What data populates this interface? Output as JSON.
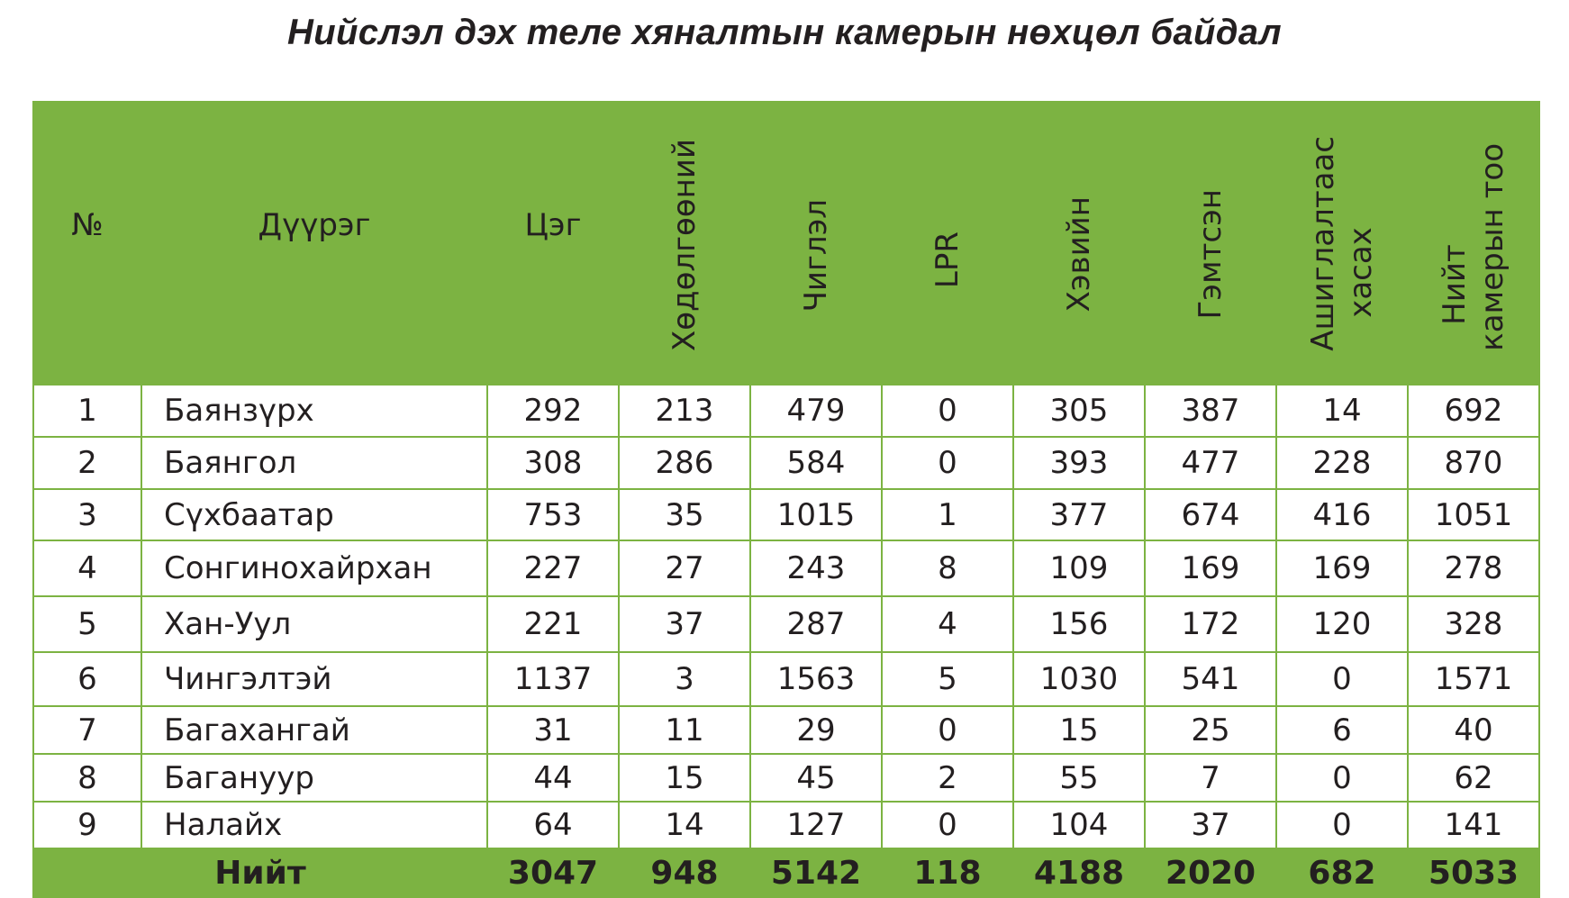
{
  "title": "Нийслэл дэх теле хяналтын камерын нөхцөл байдал",
  "table": {
    "headers": {
      "no": "№",
      "district": "Дүүрэг",
      "point": "Цэг",
      "motion": "Хөдөлгөөний",
      "fixed": "Чиглэл",
      "lpr": "LPR",
      "working": "Хэвийн",
      "broken": "Гэмтсэн",
      "removed_line1": "Ашиглалтаас",
      "removed_line2": "хасах",
      "total_line1": "Нийт",
      "total_line2": "камерын тоо"
    },
    "rows": [
      [
        "1",
        "Баянзүрх",
        "292",
        "213",
        "479",
        "0",
        "305",
        "387",
        "14",
        "692"
      ],
      [
        "2",
        "Баянгол",
        "308",
        "286",
        "584",
        "0",
        "393",
        "477",
        "228",
        "870"
      ],
      [
        "3",
        "Сүхбаатар",
        "753",
        "35",
        "1015",
        "1",
        "377",
        "674",
        "416",
        "1051"
      ],
      [
        "4",
        "Сонгинохайрхан",
        "227",
        "27",
        "243",
        "8",
        "109",
        "169",
        "169",
        "278"
      ],
      [
        "5",
        "Хан-Уул",
        "221",
        "37",
        "287",
        "4",
        "156",
        "172",
        "120",
        "328"
      ],
      [
        "6",
        "Чингэлтэй",
        "1137",
        "3",
        "1563",
        "5",
        "1030",
        "541",
        "0",
        "1571"
      ],
      [
        "7",
        "Багахангай",
        "31",
        "11",
        "29",
        "0",
        "15",
        "25",
        "6",
        "40"
      ],
      [
        "8",
        "Багануур",
        "44",
        "15",
        "45",
        "2",
        "55",
        "7",
        "0",
        "62"
      ],
      [
        "9",
        "Налайх",
        "64",
        "14",
        "127",
        "0",
        "104",
        "37",
        "0",
        "141"
      ]
    ],
    "totals": {
      "label": "Нийт",
      "values": [
        "3047",
        "948",
        "5142",
        "118",
        "4188",
        "2020",
        "682",
        "5033"
      ]
    }
  },
  "colors": {
    "header_bg": "#7cb342",
    "border": "#7cb342",
    "text": "#231f20"
  }
}
